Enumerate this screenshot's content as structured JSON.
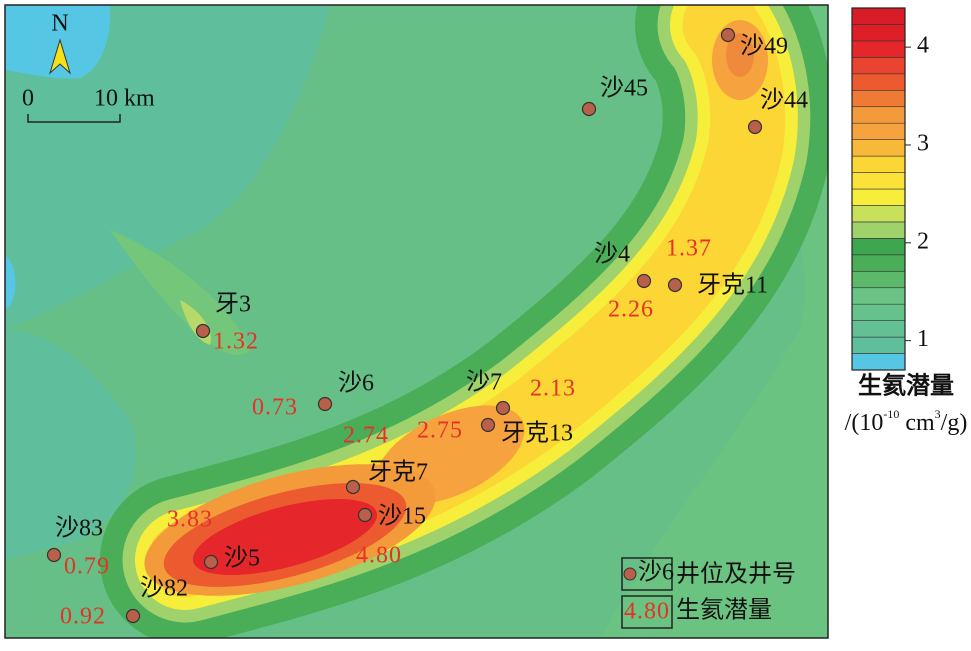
{
  "north": "N",
  "scale_bar": {
    "start": "0",
    "end": "10 km"
  },
  "wells": [
    {
      "name": "沙49"
    },
    {
      "name": "沙45"
    },
    {
      "name": "沙44"
    },
    {
      "name": "沙4",
      "value": "2.26"
    },
    {
      "name": "牙克11",
      "value": "1.37"
    },
    {
      "name": "牙3",
      "value": "1.32"
    },
    {
      "name": "沙6",
      "value": "0.73"
    },
    {
      "name": "沙7",
      "value": "2.13"
    },
    {
      "name": "牙克13",
      "value": "2.75"
    },
    {
      "name": "牙克7",
      "value": "2.74"
    },
    {
      "name": "沙15",
      "value": "4.80"
    },
    {
      "name": "沙5",
      "value": "3.83"
    },
    {
      "name": "沙83",
      "value": "0.79"
    },
    {
      "name": "沙82",
      "value": "0.92"
    }
  ],
  "legend": {
    "items": [
      {
        "sample": "沙6",
        "label": "井位及井号"
      },
      {
        "sample": "4.80",
        "label": "生氦潜量"
      }
    ]
  },
  "colorbar": {
    "range": [
      0.7,
      4.4
    ],
    "ticks": [
      1,
      2,
      3,
      4
    ],
    "title": "生氦潜量",
    "unit": [
      "/(10",
      "-10",
      " cm",
      "3",
      "/g)"
    ]
  }
}
